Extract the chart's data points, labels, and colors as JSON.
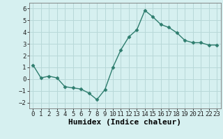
{
  "x": [
    0,
    1,
    2,
    3,
    4,
    5,
    6,
    7,
    8,
    9,
    10,
    11,
    12,
    13,
    14,
    15,
    16,
    17,
    18,
    19,
    20,
    21,
    22,
    23
  ],
  "y": [
    1.2,
    0.1,
    0.25,
    0.1,
    -0.65,
    -0.75,
    -0.85,
    -1.2,
    -1.75,
    -0.9,
    1.0,
    2.5,
    3.6,
    4.2,
    5.85,
    5.3,
    4.65,
    4.4,
    3.95,
    3.3,
    3.1,
    3.1,
    2.9,
    2.9
  ],
  "line_color": "#2e7d6e",
  "marker": "D",
  "marker_size": 2.5,
  "bg_color": "#d6f0f0",
  "grid_color": "#b8d8d8",
  "xlabel": "Humidex (Indice chaleur)",
  "ylim": [
    -2.5,
    6.5
  ],
  "xlim": [
    -0.5,
    23.5
  ],
  "yticks": [
    -2,
    -1,
    0,
    1,
    2,
    3,
    4,
    5,
    6
  ],
  "xtick_labels": [
    "0",
    "1",
    "2",
    "3",
    "4",
    "5",
    "6",
    "7",
    "8",
    "9",
    "10",
    "11",
    "12",
    "13",
    "14",
    "15",
    "16",
    "17",
    "18",
    "19",
    "20",
    "21",
    "22",
    "23"
  ],
  "tick_fontsize": 6.5,
  "xlabel_fontsize": 8,
  "linewidth": 1.0
}
